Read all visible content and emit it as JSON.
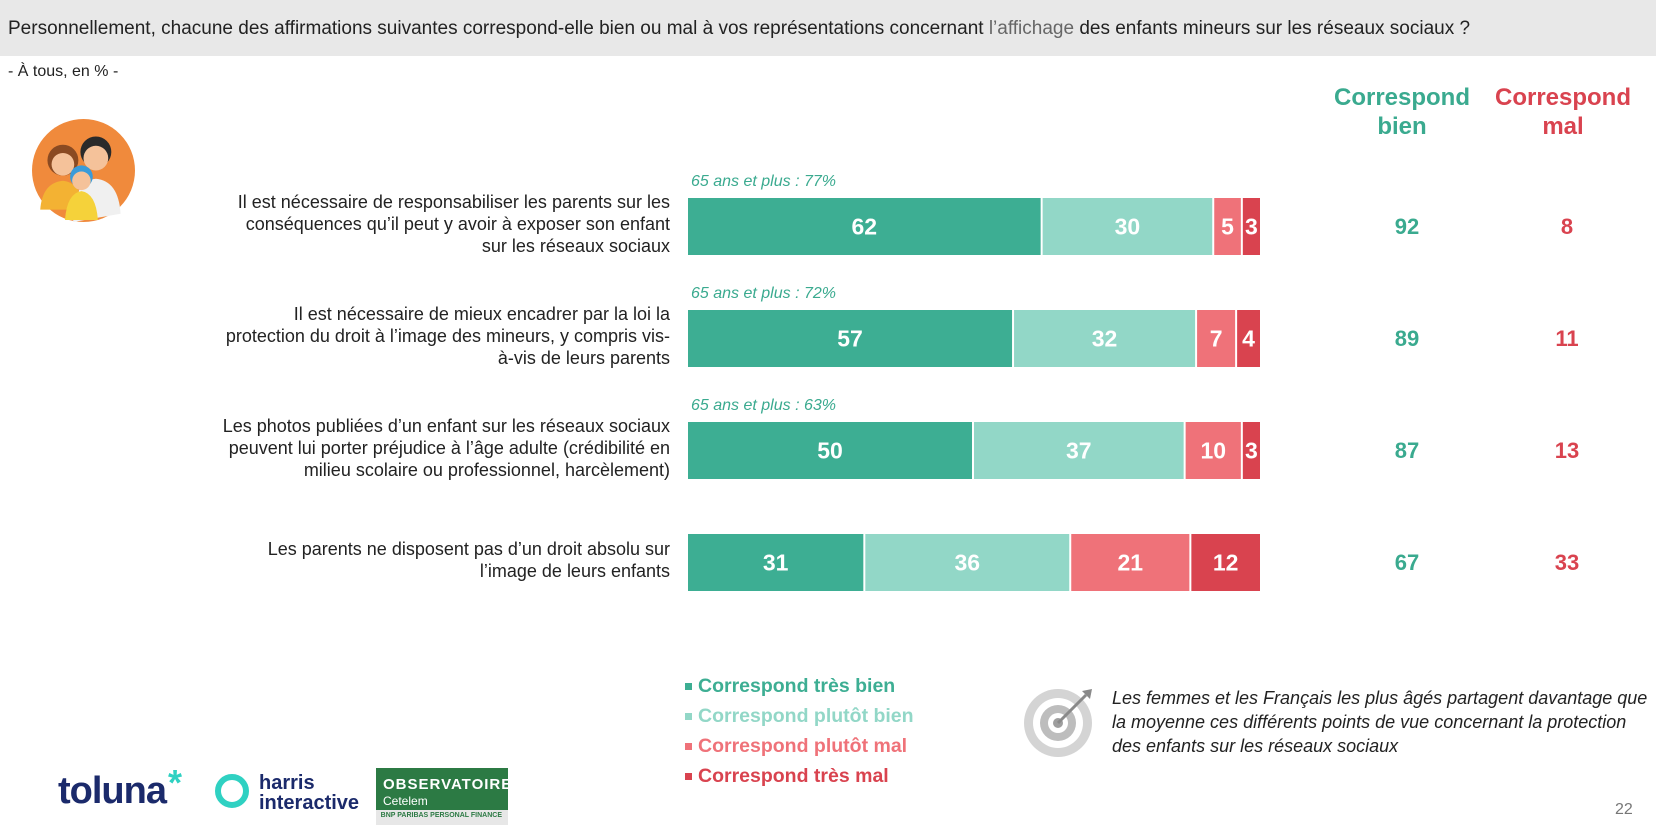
{
  "header": {
    "question_part1": "Personnellement, chacune des affirmations suivantes correspond-elle bien ou mal à vos représentations concernant ",
    "question_part2": "l’affichage",
    "question_part3": " des enfants mineurs sur les réseaux sociaux ?"
  },
  "subtitle": "- À tous, en % -",
  "columns": {
    "good": "Correspond bien",
    "bad": "Correspond mal"
  },
  "colors": {
    "tres_bien": "#3dae93",
    "plutot_bien": "#92d7c7",
    "plutot_mal": "#ef7279",
    "tres_mal": "#d9434f",
    "good_text": "#3aaa8f",
    "bad_text": "#d9434f"
  },
  "chart_data": {
    "type": "bar",
    "orientation": "horizontal-stacked",
    "xlim": [
      0,
      100
    ],
    "categories": [
      "Il est nécessaire de responsabiliser les parents sur les conséquences qu’il peut y avoir à exposer son enfant sur les réseaux sociaux",
      "Il est nécessaire de mieux encadrer par la loi la protection du droit à l’image des mineurs, y compris vis-à-vis de leurs parents",
      "Les photos publiées d’un enfant sur les réseaux sociaux peuvent lui porter préjudice à l’âge adulte (crédibilité en milieu scolaire ou professionnel, harcèlement)",
      "Les parents ne disposent pas d’un droit absolu sur l’image de leurs enfants"
    ],
    "series": [
      {
        "name": "Correspond très bien",
        "values": [
          62,
          57,
          50,
          31
        ]
      },
      {
        "name": "Correspond plutôt bien",
        "values": [
          30,
          32,
          37,
          36
        ]
      },
      {
        "name": "Correspond plutôt mal",
        "values": [
          5,
          7,
          10,
          21
        ]
      },
      {
        "name": "Correspond très mal",
        "values": [
          3,
          4,
          3,
          12
        ]
      }
    ],
    "totals_bien": [
      92,
      89,
      87,
      67
    ],
    "totals_mal": [
      8,
      11,
      13,
      33
    ],
    "annotations": [
      "65 ans et plus : 77%",
      "65 ans et plus : 72%",
      "65 ans et plus : 63%",
      ""
    ],
    "legend_position": "bottom-center"
  },
  "rows": [
    {
      "lines": [
        "Il est nécessaire de responsabiliser les parents sur les",
        "conséquences qu’il peut y avoir à exposer son enfant",
        "sur les réseaux sociaux"
      ]
    },
    {
      "lines": [
        "Il est nécessaire de mieux encadrer par la loi la",
        "protection du droit à l’image des mineurs, y compris vis-",
        "à-vis de leurs parents"
      ]
    },
    {
      "lines": [
        "Les photos publiées d’un enfant sur les réseaux sociaux",
        "peuvent lui porter préjudice à l’âge adulte (crédibilité en",
        "milieu scolaire ou professionnel, harcèlement)"
      ]
    },
    {
      "lines": [
        "Les parents ne disposent pas d’un droit absolu sur",
        "l’image de leurs enfants"
      ]
    }
  ],
  "insight": "Les femmes et les Français les plus âgés partagent davantage que la moyenne ces différents points de vue concernant la protection des enfants sur les réseaux sociaux",
  "logos": {
    "toluna": "toluna",
    "harris_line1": "harris",
    "harris_line2": "interactive",
    "obs_line1": "OBSERVATOIRE",
    "obs_line2": "Cetelem",
    "obs_line3": "BNP PARIBAS PERSONAL FINANCE"
  },
  "page_number": "22"
}
